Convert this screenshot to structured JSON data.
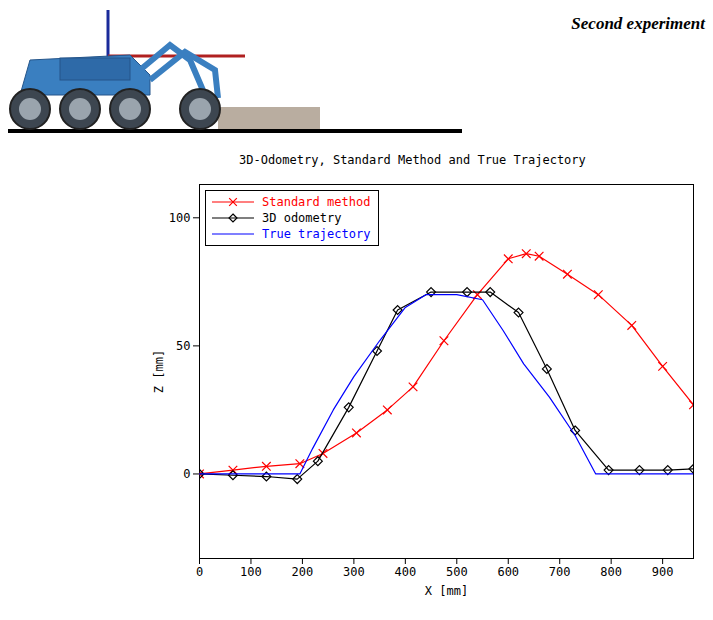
{
  "header": {
    "text": "Second experiment"
  },
  "chart_data": {
    "type": "line",
    "title": "3D-Odometry, Standard Method and True Trajectory",
    "x_label": "X [mm]",
    "y_label": "Z [mm]",
    "xlim": [
      0,
      960
    ],
    "xticks": [
      0,
      100,
      200,
      300,
      400,
      500,
      600,
      700,
      800,
      900
    ],
    "ylim": [
      -33,
      113
    ],
    "yticks": [
      0,
      50,
      100
    ],
    "grid": false,
    "legend": "top-left",
    "series": [
      {
        "name": "Standard method",
        "color": "#ff0000",
        "marker": "x",
        "line_style": "solid",
        "x": [
          0,
          65,
          130,
          195,
          240,
          305,
          365,
          415,
          475,
          540,
          600,
          635,
          660,
          715,
          775,
          840,
          900,
          960
        ],
        "values": [
          0,
          1.5,
          3,
          4,
          8,
          16,
          25,
          34,
          52,
          70,
          84,
          86,
          85,
          78,
          70,
          58,
          42,
          27
        ]
      },
      {
        "name": "3D odometry",
        "color": "#000000",
        "marker": "diamond",
        "line_style": "solid",
        "x": [
          0,
          65,
          130,
          190,
          230,
          290,
          345,
          385,
          450,
          520,
          565,
          620,
          675,
          730,
          795,
          855,
          910,
          960
        ],
        "values": [
          0,
          -0.5,
          -1,
          -2,
          5,
          26,
          48,
          64,
          71,
          71,
          71,
          63,
          41,
          17,
          1.5,
          1.5,
          1.5,
          2
        ]
      },
      {
        "name": "True trajectory",
        "color": "#0000ff",
        "marker": "none",
        "line_style": "solid",
        "x": [
          0,
          195,
          220,
          260,
          300,
          350,
          400,
          440,
          500,
          550,
          590,
          630,
          680,
          730,
          770,
          960
        ],
        "values": [
          0,
          0,
          10,
          25,
          38,
          52,
          65,
          70,
          70,
          68,
          56,
          43,
          30,
          15,
          0,
          0
        ]
      }
    ]
  }
}
